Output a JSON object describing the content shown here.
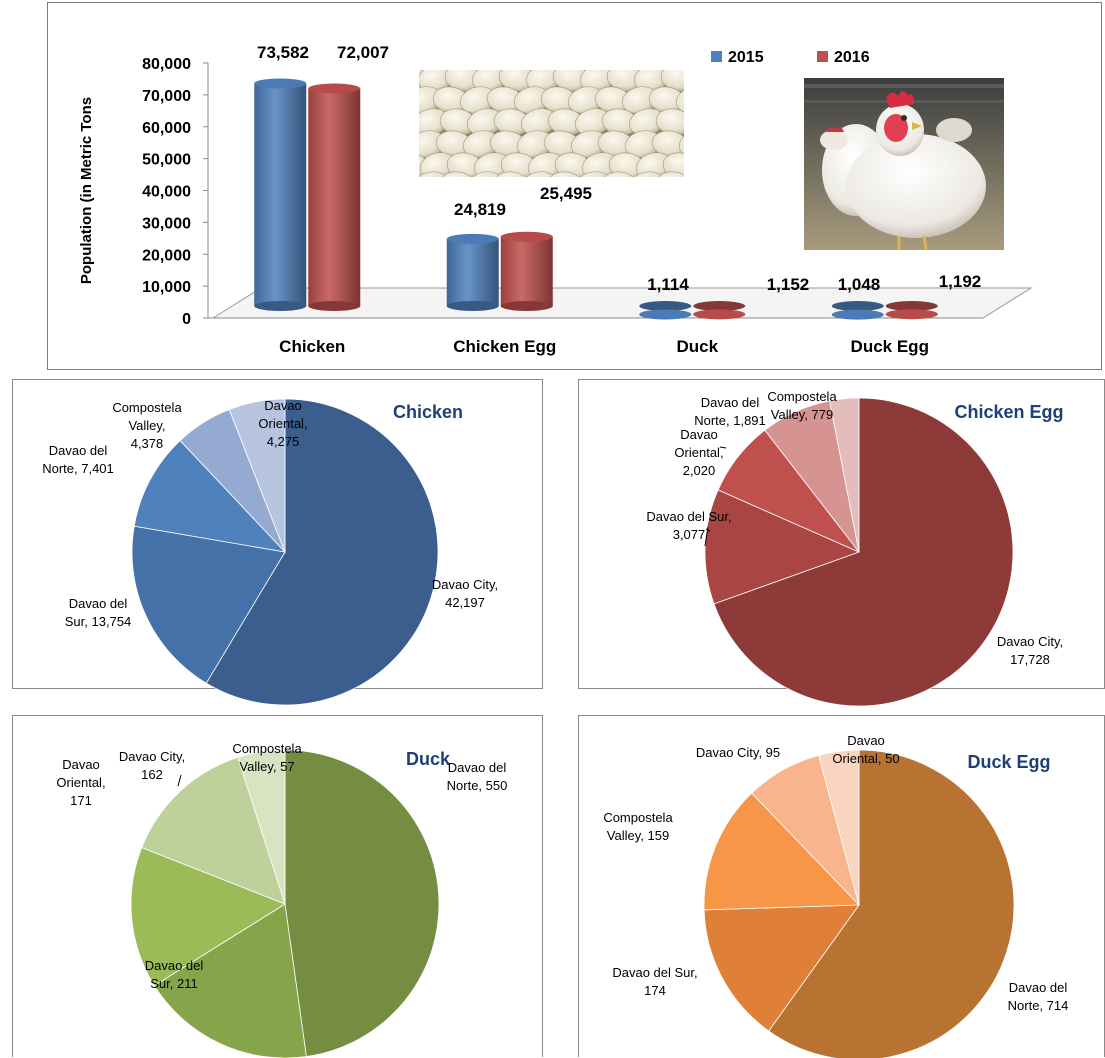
{
  "bar_chart": {
    "ylabel": "Population  (in Metric Tons",
    "y_ticks": [
      "0",
      "10,000",
      "20,000",
      "30,000",
      "40,000",
      "50,000",
      "60,000",
      "70,000",
      "80,000"
    ],
    "legend": [
      "2015",
      "2016"
    ],
    "labels": [
      [
        "73,582",
        "72,007"
      ],
      [
        "24,819",
        "25,495"
      ],
      [
        "1,114",
        "1,152"
      ],
      [
        "1,048",
        "1,192"
      ]
    ]
  },
  "pies": [
    {
      "title": "Chicken",
      "labels": [
        [
          "Davao City,",
          "42,197"
        ],
        [
          "Davao del",
          "Sur, 13,754"
        ],
        [
          "Davao del",
          "Norte, 7,401"
        ],
        [
          "Compostela",
          "Valley,",
          "4,378"
        ],
        [
          "Davao",
          "Oriental,",
          "4,275"
        ]
      ]
    },
    {
      "title": "Chicken Egg",
      "labels": [
        [
          "Davao City,",
          "17,728"
        ],
        [
          "Davao del Sur,",
          "3,077"
        ],
        [
          "Davao",
          "Oriental,",
          "2,020"
        ],
        [
          "Davao del",
          "Norte, 1,891"
        ],
        [
          "Compostela",
          "Valley, 779"
        ]
      ]
    },
    {
      "title": "Duck",
      "labels": [
        [
          "Davao del",
          "Norte, 550"
        ],
        [
          "Davao del",
          "Sur, 211"
        ],
        [
          "Davao",
          "Oriental,",
          "171"
        ],
        [
          "Davao City,",
          "162"
        ],
        [
          "Compostela",
          "Valley, 57"
        ]
      ]
    },
    {
      "title": "Duck Egg",
      "labels": [
        [
          "Davao del",
          "Norte, 714"
        ],
        [
          "Davao del Sur,",
          "174"
        ],
        [
          "Compostela",
          "Valley, 159"
        ],
        [
          "Davao City, 95"
        ],
        [
          "Davao",
          "Oriental, 50"
        ]
      ]
    }
  ],
  "colors": {
    "bar_2015": "#4f81bd",
    "bar_2016": "#c0504d",
    "pie_title": "#1f3f7a"
  },
  "chart_data": [
    {
      "type": "bar",
      "categories": [
        "Chicken",
        "Chicken Egg",
        "Duck",
        "Duck Egg"
      ],
      "series": [
        {
          "name": "2015",
          "values": [
            73582,
            24819,
            1114,
            1048
          ]
        },
        {
          "name": "2016",
          "values": [
            72007,
            25495,
            1152,
            1192
          ]
        }
      ],
      "ylabel": "Population  (in Metric Tons",
      "ylim": [
        0,
        80000
      ],
      "legend": "top-right",
      "grid": false
    },
    {
      "type": "pie",
      "title": "Chicken",
      "categories": [
        "Davao City",
        "Davao del Sur",
        "Davao del Norte",
        "Compostela Valley",
        "Davao Oriental"
      ],
      "values": [
        42197,
        13754,
        7401,
        4378,
        4275
      ],
      "colors": [
        "#3b5e8e",
        "#4472a8",
        "#4f81bd",
        "#95aad1",
        "#b7c4e0"
      ]
    },
    {
      "type": "pie",
      "title": "Chicken Egg",
      "categories": [
        "Davao City",
        "Davao del Sur",
        "Davao Oriental",
        "Davao del Norte",
        "Compostela Valley"
      ],
      "values": [
        17728,
        3077,
        2020,
        1891,
        779
      ],
      "colors": [
        "#8e3a38",
        "#a94542",
        "#c0504d",
        "#d59492",
        "#e3bcbb"
      ]
    },
    {
      "type": "pie",
      "title": "Duck",
      "categories": [
        "Davao del Norte",
        "Davao del Sur",
        "Davao Oriental",
        "Davao City",
        "Compostela Valley"
      ],
      "values": [
        550,
        211,
        171,
        162,
        57
      ],
      "colors": [
        "#748d41",
        "#86a54a",
        "#9bbb59",
        "#bfd19a",
        "#d8e3c2"
      ]
    },
    {
      "type": "pie",
      "title": "Duck Egg",
      "categories": [
        "Davao del Norte",
        "Davao del Sur",
        "Compostela Valley",
        "Davao City",
        "Davao Oriental"
      ],
      "values": [
        714,
        174,
        159,
        95,
        50
      ],
      "colors": [
        "#b87333",
        "#e07f37",
        "#f79646",
        "#f8b58c",
        "#fbd4bf"
      ]
    }
  ]
}
